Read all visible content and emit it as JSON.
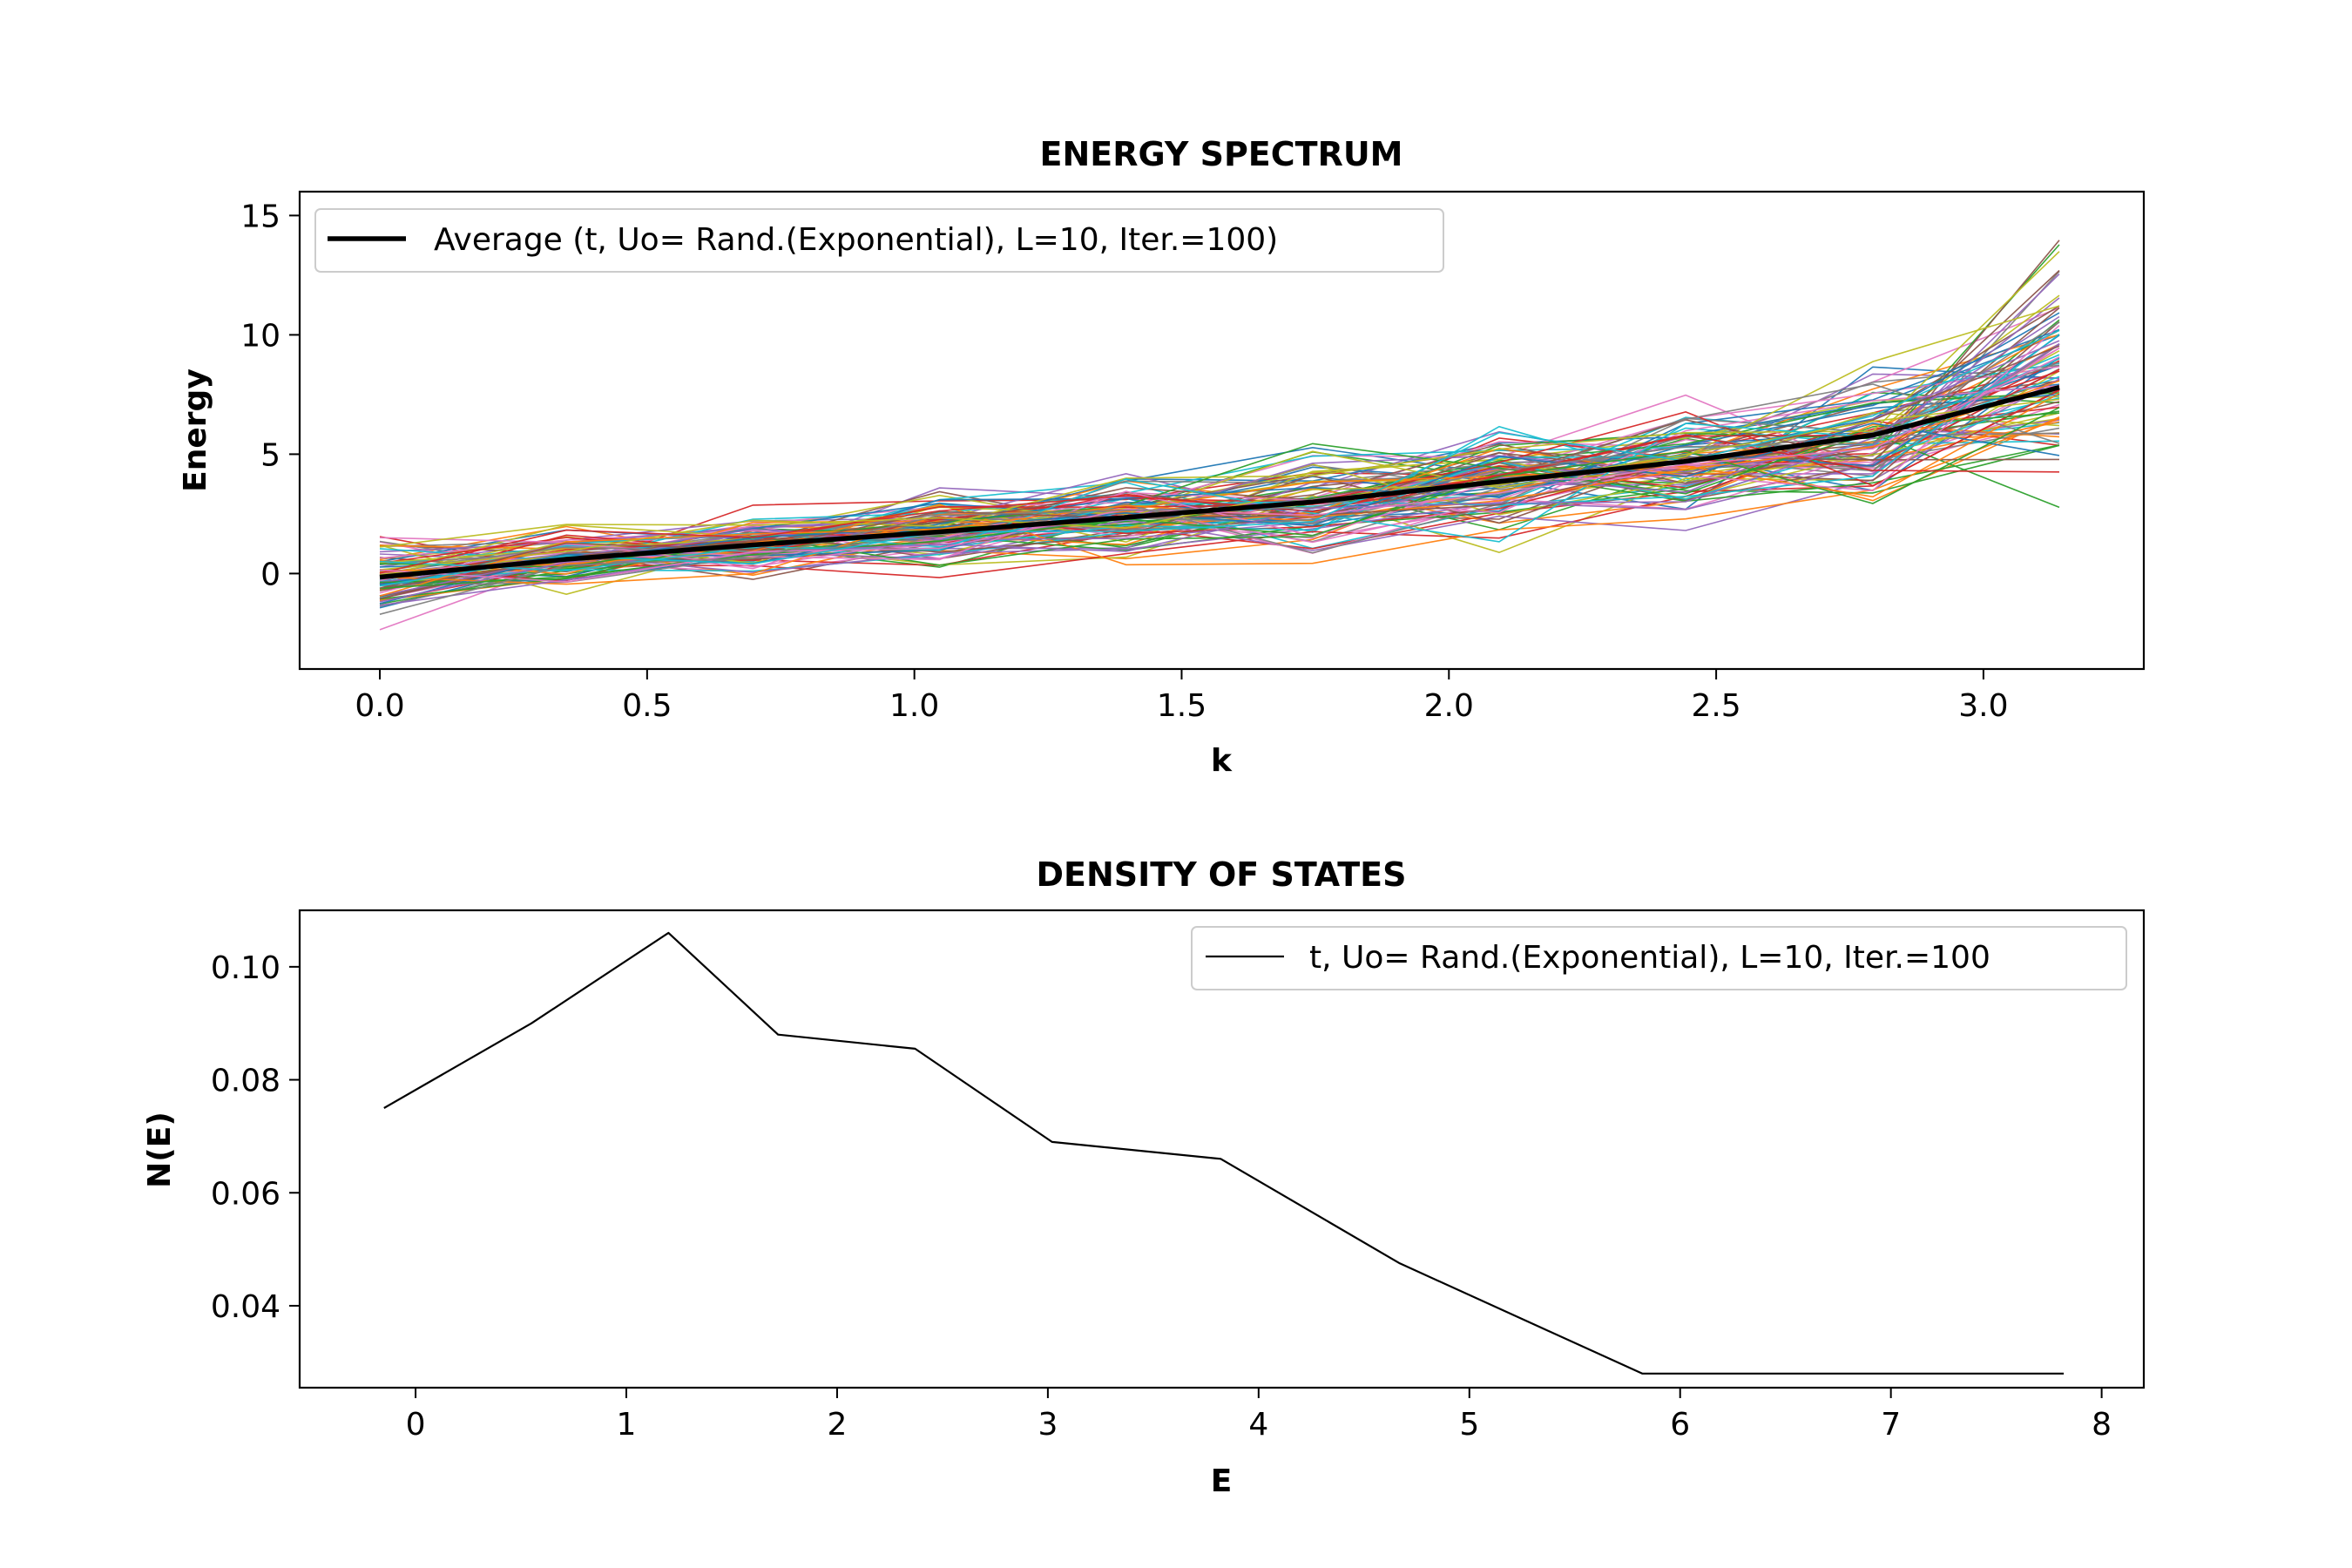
{
  "chart_data": [
    {
      "type": "line",
      "title": "ENERGY SPECTRUM",
      "xlabel": "k",
      "ylabel": "Energy",
      "xlim": [
        -0.15,
        3.3
      ],
      "ylim": [
        -4,
        16
      ],
      "xticks": [
        "0.0",
        "0.5",
        "1.0",
        "1.5",
        "2.0",
        "2.5",
        "3.0"
      ],
      "yticks": [
        "0",
        "5",
        "10",
        "15"
      ],
      "grid": false,
      "legend_position": "upper-left",
      "x": [
        0.0,
        0.349,
        0.698,
        1.047,
        1.396,
        1.745,
        2.094,
        2.443,
        2.793,
        3.142
      ],
      "series": [
        {
          "name": "Average (t, Uo= Rand.(Exponential), L=10, Iter.=100)",
          "color": "#000000",
          "values": [
            -0.15,
            0.6,
            1.2,
            1.75,
            2.35,
            3.0,
            3.85,
            4.7,
            5.8,
            7.8
          ]
        }
      ],
      "individual_runs": {
        "count": 100,
        "value_range": [
          -3.1,
          14.9
        ],
        "colors": [
          "#1f77b4",
          "#ff7f0e",
          "#2ca02c",
          "#d62728",
          "#9467bd",
          "#8c564b",
          "#e377c2",
          "#7f7f7f",
          "#bcbd22",
          "#17becf"
        ]
      }
    },
    {
      "type": "line",
      "title": "DENSITY OF STATES",
      "xlabel": "E",
      "ylabel": "N(E)",
      "xlim": [
        -0.55,
        8.2
      ],
      "ylim": [
        0.0255,
        0.11
      ],
      "xticks": [
        "0",
        "1",
        "2",
        "3",
        "4",
        "5",
        "6",
        "7",
        "8"
      ],
      "yticks": [
        "0.04",
        "0.06",
        "0.08",
        "0.10"
      ],
      "grid": false,
      "legend_position": "upper-right",
      "series": [
        {
          "name": "t, Uo= Rand.(Exponential), L=10, Iter.=100",
          "color": "#000000",
          "x": [
            -0.15,
            0.55,
            1.2,
            1.72,
            2.37,
            3.02,
            3.82,
            4.67,
            5.82,
            7.82
          ],
          "values": [
            0.075,
            0.09,
            0.106,
            0.088,
            0.0855,
            0.069,
            0.066,
            0.0475,
            0.028,
            0.028
          ]
        }
      ]
    }
  ]
}
